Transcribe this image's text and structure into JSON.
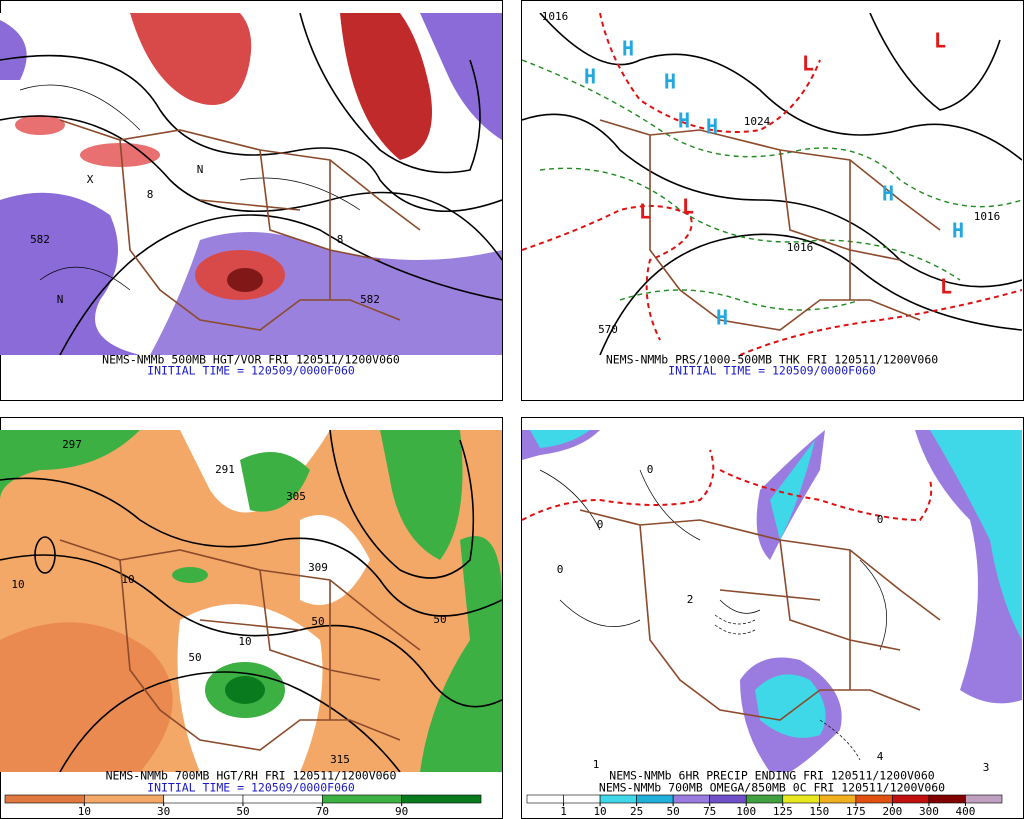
{
  "panels": [
    {
      "caption": "NEMS-NMMb 500MB HGT/VOR FRI 120511/1200V060",
      "initial_time": "INITIAL TIME = 120509/0000F060",
      "labels": [
        "582",
        "582",
        "8",
        "8",
        "N",
        "N",
        "X"
      ]
    },
    {
      "caption": "NEMS-NMMb PRS/1000-500MB THK FRI 120511/1200V060",
      "initial_time": "INITIAL TIME = 120509/0000F060",
      "labels": [
        "H",
        "H",
        "H",
        "H",
        "H",
        "H",
        "H",
        "H",
        "L",
        "L",
        "L",
        "L",
        "L",
        "1016",
        "1016",
        "1016",
        "1024",
        "570"
      ]
    },
    {
      "caption": "NEMS-NMMb 700MB HGT/RH FRI 120511/1200V060",
      "initial_time": "INITIAL TIME = 120509/0000F060",
      "labels": [
        "297",
        "291",
        "305",
        "309",
        "315",
        "10",
        "10",
        "10",
        "50",
        "50",
        "50"
      ],
      "colorbar": {
        "ticks": [
          10,
          30,
          50,
          70,
          90
        ],
        "colors": [
          "#e07840",
          "#f4a868",
          "#ffffff",
          "#ffffff",
          "#3cb043",
          "#0a7a1e"
        ]
      }
    },
    {
      "caption": "NEMS-NMMb 6HR PRECIP ENDING FRI 120511/1200V060",
      "subcaption": "NEMS-NMMb 700MB OMEGA/850MB 0C FRI 120511/1200V060",
      "labels": [
        "0",
        "0",
        "0",
        "0",
        "1",
        "2",
        "3",
        "4"
      ],
      "colorbar": {
        "ticks": [
          1,
          10,
          25,
          50,
          75,
          100,
          125,
          150,
          175,
          200,
          300,
          400
        ],
        "colors": [
          "#ffffff",
          "#ffffff",
          "#3fd8e8",
          "#20b0d8",
          "#9a7ce0",
          "#7050c8",
          "#40a040",
          "#e8e820",
          "#f0b020",
          "#e05010",
          "#c01010",
          "#800000",
          "#c0a0c0"
        ]
      }
    }
  ]
}
